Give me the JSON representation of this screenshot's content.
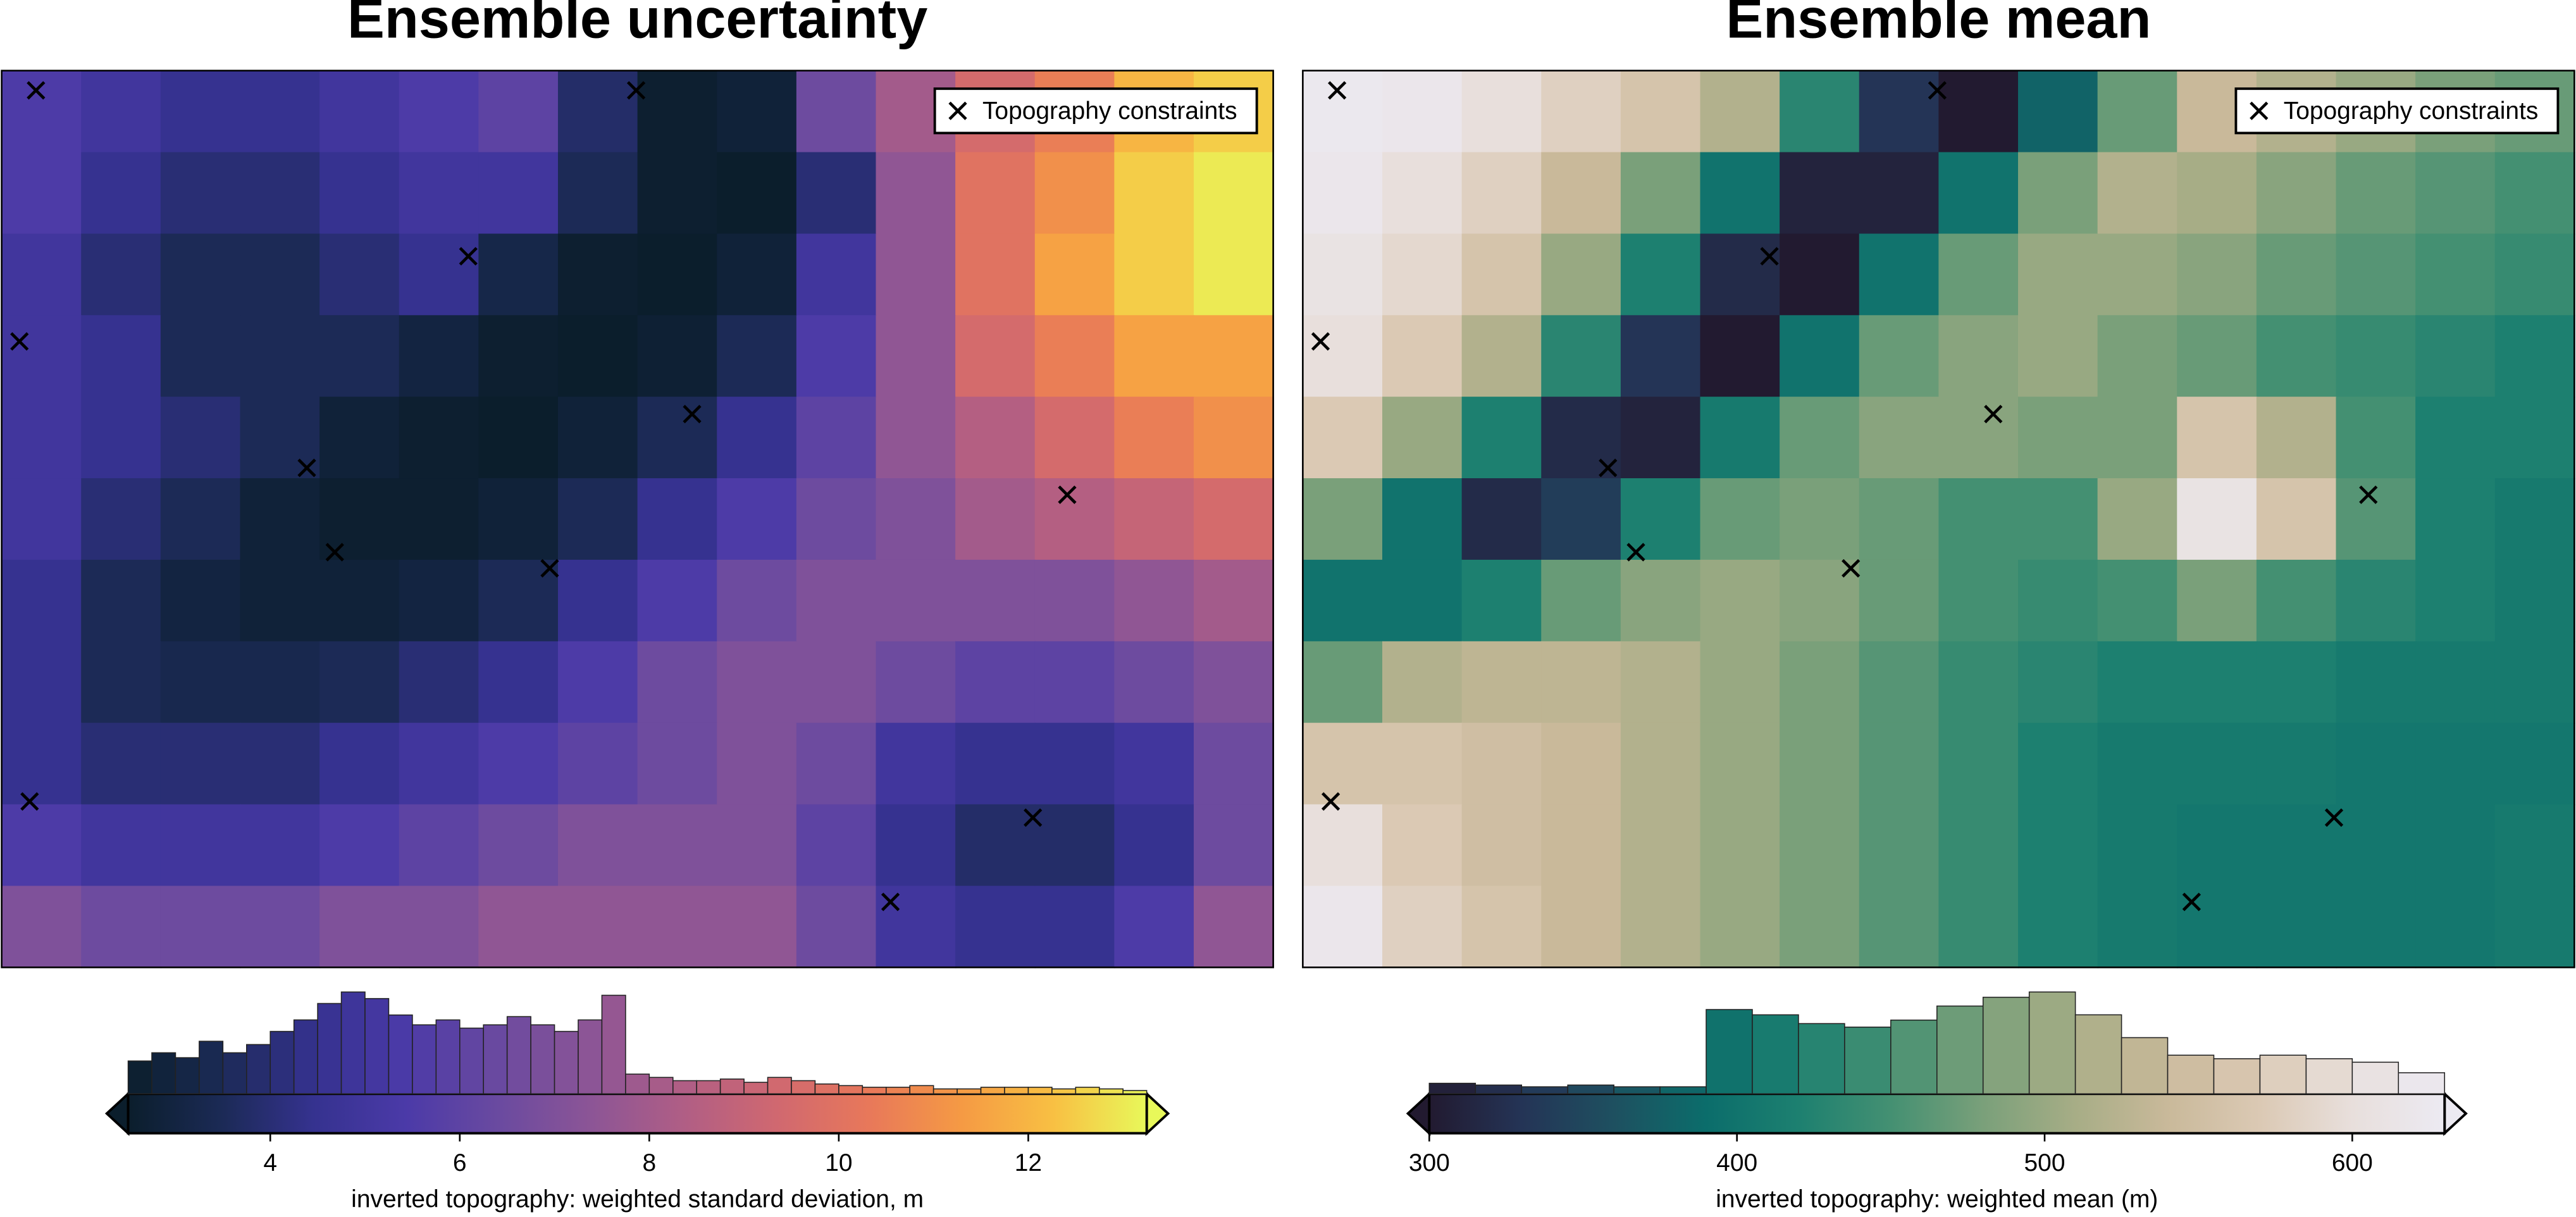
{
  "chart_data": [
    {
      "type": "heatmap",
      "title": "Ensemble uncertainty",
      "z": [
        [
          5.5,
          5,
          4.5,
          4.5,
          5,
          5.5,
          6,
          3.8,
          2.6,
          2.8,
          6.5,
          8,
          9.5,
          10.5,
          12,
          12.5
        ],
        [
          5.5,
          4.5,
          4,
          4,
          4.5,
          5,
          5,
          3.5,
          2.6,
          2.5,
          4,
          7.5,
          10,
          11,
          12.5,
          13
        ],
        [
          5,
          4,
          3.5,
          3.5,
          4,
          4.5,
          3.2,
          2.6,
          2.5,
          2.8,
          5,
          7.5,
          10,
          11.5,
          12.5,
          13
        ],
        [
          5,
          4.5,
          3.5,
          3.5,
          3.5,
          3,
          2.6,
          2.5,
          2.7,
          3.5,
          5.5,
          7.5,
          9.5,
          10.5,
          11.5,
          11.5
        ],
        [
          5,
          4.5,
          4,
          3.5,
          2.8,
          2.6,
          2.5,
          2.8,
          3.5,
          4.5,
          6,
          7.5,
          8.5,
          9.5,
          10.5,
          11
        ],
        [
          5,
          4,
          3.5,
          2.8,
          2.6,
          2.6,
          2.8,
          3.5,
          4.5,
          5.5,
          6.5,
          7,
          8,
          8.5,
          9,
          9.5
        ],
        [
          4.5,
          3.5,
          3,
          2.8,
          2.8,
          3,
          3.5,
          4.5,
          5.5,
          6.5,
          7,
          7,
          7,
          7,
          7.5,
          8
        ],
        [
          4.5,
          3.5,
          3.3,
          3.3,
          3.5,
          4,
          4.5,
          5.5,
          6.5,
          7,
          7,
          6.5,
          6,
          6,
          6.5,
          7
        ],
        [
          4.5,
          4,
          4,
          4,
          4.5,
          5,
          5.5,
          6,
          6.5,
          7,
          6.5,
          5,
          4.5,
          4.5,
          5,
          6.5
        ],
        [
          5.5,
          5,
          5,
          5,
          5.5,
          6,
          6.5,
          7,
          7,
          7,
          6,
          4.5,
          3.8,
          3.8,
          4.5,
          6.5
        ],
        [
          7,
          6.5,
          6.5,
          6.5,
          7,
          7,
          7.5,
          7.5,
          7.5,
          7.5,
          6.5,
          5,
          4.5,
          4.5,
          5.5,
          7.5
        ]
      ],
      "colormap": [
        "#0b1e2c",
        "#1b2a55",
        "#35328f",
        "#4b3aa8",
        "#6a4aa0",
        "#8c5596",
        "#b05e85",
        "#d06870",
        "#e8785a",
        "#f59a44",
        "#f8c043",
        "#e8f85a"
      ],
      "clim": [
        2.5,
        13.25
      ],
      "colorbar_ticks": [
        4,
        6,
        8,
        10,
        12
      ],
      "colorbar_label": "inverted topography: weighted standard deviation, m",
      "histogram": {
        "bins": [
          2.5,
          2.75,
          3,
          3.25,
          3.5,
          3.75,
          4,
          4.25,
          4.5,
          4.75,
          5,
          5.25,
          5.5,
          5.75,
          6,
          6.25,
          6.5,
          6.75,
          7,
          7.25,
          7.5,
          7.75,
          8,
          8.25,
          8.5,
          8.75,
          9,
          9.25,
          9.5,
          9.75,
          10,
          10.25,
          10.5,
          10.75,
          11,
          11.25,
          11.5,
          11.75,
          12,
          12.25,
          12.5,
          12.75,
          13,
          13.25
        ],
        "counts": [
          20,
          25,
          22,
          32,
          25,
          30,
          38,
          45,
          55,
          62,
          58,
          48,
          42,
          45,
          40,
          42,
          47,
          42,
          38,
          45,
          60,
          12,
          10,
          8,
          8,
          9,
          7,
          10,
          8,
          6,
          5,
          4,
          4,
          5,
          3,
          3,
          4,
          4,
          4,
          3,
          4,
          3,
          2
        ]
      },
      "xlim": [
        0,
        1
      ],
      "ylim": [
        0,
        1
      ],
      "points": {
        "name": "Topography constraints",
        "color": "#000000",
        "x": [
          0.027,
          0.499,
          0.367,
          0.014,
          0.543,
          0.24,
          0.838,
          0.262,
          0.431,
          0.022,
          0.811,
          0.699
        ],
        "y": [
          0.978,
          0.978,
          0.793,
          0.698,
          0.617,
          0.557,
          0.527,
          0.463,
          0.445,
          0.185,
          0.167,
          0.073
        ]
      },
      "legend": "upper right"
    },
    {
      "type": "heatmap",
      "title": "Ensemble mean",
      "z": [
        [
          625,
          620,
          600,
          580,
          560,
          520,
          430,
          330,
          300,
          380,
          470,
          540,
          520,
          500,
          480,
          470
        ],
        [
          620,
          600,
          580,
          540,
          480,
          400,
          310,
          310,
          400,
          480,
          520,
          510,
          490,
          470,
          460,
          450
        ],
        [
          610,
          590,
          560,
          500,
          420,
          320,
          300,
          400,
          470,
          500,
          500,
          490,
          470,
          460,
          450,
          440
        ],
        [
          600,
          570,
          520,
          430,
          330,
          300,
          400,
          470,
          490,
          500,
          480,
          470,
          450,
          440,
          430,
          420
        ],
        [
          570,
          500,
          420,
          320,
          310,
          410,
          470,
          490,
          490,
          480,
          480,
          560,
          520,
          450,
          420,
          420
        ],
        [
          480,
          400,
          320,
          340,
          420,
          470,
          480,
          470,
          450,
          450,
          500,
          610,
          560,
          460,
          420,
          410
        ],
        [
          400,
          400,
          420,
          470,
          490,
          500,
          490,
          470,
          450,
          440,
          450,
          480,
          450,
          430,
          420,
          410
        ],
        [
          470,
          520,
          530,
          530,
          520,
          500,
          480,
          460,
          440,
          430,
          420,
          420,
          420,
          410,
          410,
          410
        ],
        [
          560,
          560,
          550,
          540,
          520,
          500,
          480,
          460,
          440,
          420,
          410,
          410,
          410,
          405,
          405,
          405
        ],
        [
          600,
          570,
          550,
          540,
          520,
          500,
          480,
          460,
          440,
          420,
          410,
          405,
          405,
          405,
          405,
          410
        ],
        [
          620,
          580,
          560,
          540,
          520,
          500,
          480,
          460,
          440,
          420,
          410,
          405,
          405,
          405,
          405,
          410
        ]
      ],
      "colormap": [
        "#221a30",
        "#243456",
        "#1e5060",
        "#0b6d6b",
        "#1d8070",
        "#449072",
        "#7aa07a",
        "#a7ad86",
        "#c9b99a",
        "#dbc9b4",
        "#e8dfdc",
        "#eceaf2"
      ],
      "clim": [
        300,
        630
      ],
      "colorbar_ticks": [
        300,
        400,
        500,
        600
      ],
      "colorbar_label": "inverted topography: weighted mean (m)",
      "histogram": {
        "bins": [
          300,
          315,
          330,
          345,
          360,
          375,
          390,
          405,
          420,
          435,
          450,
          465,
          480,
          495,
          510,
          525,
          540,
          555,
          570,
          585,
          600,
          615,
          630
        ],
        "counts": [
          6,
          5,
          4,
          5,
          4,
          4,
          48,
          45,
          40,
          38,
          42,
          50,
          55,
          58,
          45,
          32,
          22,
          20,
          22,
          20,
          18,
          12
        ]
      },
      "xlim": [
        0,
        1
      ],
      "ylim": [
        0,
        1
      ],
      "points": {
        "name": "Topography constraints",
        "color": "#000000",
        "x": [
          0.027,
          0.499,
          0.367,
          0.014,
          0.543,
          0.24,
          0.838,
          0.262,
          0.431,
          0.022,
          0.811,
          0.699
        ],
        "y": [
          0.978,
          0.978,
          0.793,
          0.698,
          0.617,
          0.557,
          0.527,
          0.463,
          0.445,
          0.185,
          0.167,
          0.073
        ]
      },
      "legend": "upper right"
    }
  ]
}
